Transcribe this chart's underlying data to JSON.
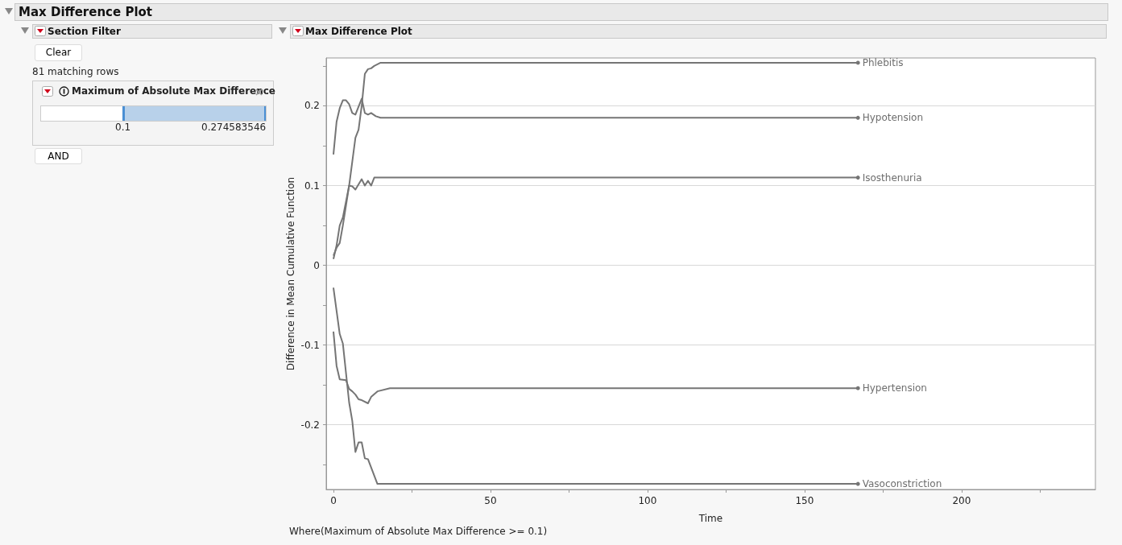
{
  "chart_data": {
    "type": "line",
    "title": "Max Difference Plot",
    "subtitle": "Max Difference Plot",
    "xlabel": "Time",
    "ylabel": "Difference in Mean Cumulative Function",
    "annotations": [
      "Section Filter",
      "Clear",
      "81 matching rows",
      "Maximum of Absolute Max Difference",
      "0.1",
      "0.274583546",
      "AND",
      "Where(Maximum of Absolute Max Difference >= 0.1)"
    ],
    "series": [
      {
        "name": "Phlebitis",
        "color": "#757575",
        "x": [
          0,
          1,
          2,
          3,
          4,
          5,
          6,
          7,
          8,
          9,
          10,
          11,
          12,
          13,
          15,
          167
        ],
        "values": [
          0.008,
          0.025,
          0.05,
          0.06,
          0.08,
          0.1,
          0.13,
          0.16,
          0.17,
          0.2,
          0.24,
          0.246,
          0.247,
          0.25,
          0.254,
          0.254
        ]
      },
      {
        "name": "Hypotension",
        "color": "#757575",
        "x": [
          0,
          1,
          2,
          3,
          4,
          5,
          6,
          7,
          9,
          10,
          11,
          12,
          13.5,
          15,
          167
        ],
        "values": [
          0.139,
          0.18,
          0.197,
          0.207,
          0.207,
          0.202,
          0.191,
          0.189,
          0.209,
          0.191,
          0.189,
          0.191,
          0.187,
          0.185,
          0.185
        ]
      },
      {
        "name": "Isosthenuria",
        "color": "#757575",
        "x": [
          0,
          1,
          2,
          3,
          5,
          6,
          7,
          9,
          10,
          11,
          12,
          13,
          167
        ],
        "values": [
          0.012,
          0.022,
          0.028,
          0.05,
          0.1,
          0.099,
          0.095,
          0.108,
          0.1,
          0.106,
          0.1,
          0.11,
          0.11
        ]
      },
      {
        "name": "Hypertension",
        "color": "#757575",
        "x": [
          0,
          1,
          2,
          4,
          5,
          6,
          7,
          8,
          9,
          11,
          12,
          14,
          18,
          167
        ],
        "values": [
          -0.083,
          -0.126,
          -0.143,
          -0.144,
          -0.155,
          -0.158,
          -0.162,
          -0.168,
          -0.169,
          -0.173,
          -0.165,
          -0.158,
          -0.154,
          -0.154
        ]
      },
      {
        "name": "Vasoconstriction",
        "color": "#757575",
        "x": [
          0,
          1,
          2,
          3,
          5,
          6,
          7,
          8,
          9,
          10,
          11,
          14,
          167
        ],
        "values": [
          -0.028,
          -0.057,
          -0.086,
          -0.098,
          -0.172,
          -0.195,
          -0.234,
          -0.222,
          -0.222,
          -0.242,
          -0.243,
          -0.274,
          -0.274
        ]
      }
    ],
    "xlim": [
      -2.3,
      242.6
    ],
    "xticks": [
      0,
      {
        "value": 25,
        "label": null
      },
      50,
      {
        "value": 75,
        "label": null
      },
      100,
      {
        "value": 125,
        "label": null
      },
      150,
      {
        "value": 175,
        "label": null
      },
      200,
      {
        "value": 225,
        "label": null
      }
    ],
    "ylim": [
      -0.281,
      0.26
    ],
    "yticks": [
      {
        "value": -0.25,
        "label": null
      },
      -0.2,
      {
        "value": -0.15,
        "label": null
      },
      -0.1,
      {
        "value": -0.05,
        "label": null
      },
      0,
      {
        "value": 0.05,
        "label": null
      },
      0.1,
      {
        "value": 0.15,
        "label": null
      },
      0.2,
      {
        "value": 0.25,
        "label": null
      }
    ],
    "grid": "y",
    "legend": false,
    "marker": "none",
    "line_style": "solid"
  }
}
